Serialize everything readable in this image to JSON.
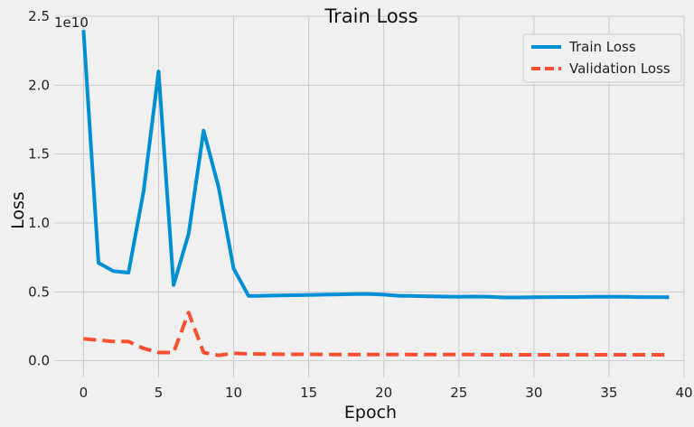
{
  "chart_data": {
    "type": "line",
    "title": "Train Loss",
    "xlabel": "Epoch",
    "ylabel": "Loss",
    "y_offset_text": "1e10",
    "xlim": [
      -1.95,
      40.0
    ],
    "ylim": [
      -0.12,
      2.5
    ],
    "x_ticks": [
      0,
      5,
      10,
      15,
      20,
      25,
      30,
      35,
      40
    ],
    "y_ticks": [
      0.0,
      0.5,
      1.0,
      1.5,
      2.0,
      2.5
    ],
    "y_tick_labels": [
      "0.0",
      "0.5",
      "1.0",
      "1.5",
      "2.0",
      "2.5"
    ],
    "grid": true,
    "legend_position": "top-right",
    "x": [
      0,
      1,
      2,
      3,
      4,
      5,
      6,
      7,
      8,
      9,
      10,
      11,
      12,
      13,
      14,
      15,
      16,
      17,
      18,
      19,
      20,
      21,
      22,
      23,
      24,
      25,
      26,
      27,
      28,
      29,
      30,
      31,
      32,
      33,
      34,
      35,
      36,
      37,
      38,
      39
    ],
    "series": [
      {
        "name": "Train Loss",
        "color": "#008fd5",
        "style": "solid",
        "values": [
          2.4,
          0.71,
          0.65,
          0.64,
          1.23,
          2.1,
          0.55,
          0.92,
          1.67,
          1.26,
          0.67,
          0.47,
          0.472,
          0.474,
          0.476,
          0.478,
          0.48,
          0.482,
          0.484,
          0.485,
          0.48,
          0.472,
          0.47,
          0.468,
          0.466,
          0.465,
          0.466,
          0.465,
          0.46,
          0.46,
          0.461,
          0.462,
          0.463,
          0.463,
          0.464,
          0.465,
          0.464,
          0.462,
          0.462,
          0.461
        ]
      },
      {
        "name": "Validation Loss",
        "color": "#fc4f30",
        "style": "dashed",
        "values": [
          0.16,
          0.15,
          0.14,
          0.14,
          0.09,
          0.06,
          0.06,
          0.35,
          0.06,
          0.04,
          0.055,
          0.05,
          0.049,
          0.048,
          0.047,
          0.047,
          0.046,
          0.046,
          0.046,
          0.046,
          0.046,
          0.045,
          0.045,
          0.045,
          0.045,
          0.045,
          0.045,
          0.044,
          0.044,
          0.044,
          0.044,
          0.044,
          0.044,
          0.044,
          0.044,
          0.044,
          0.044,
          0.044,
          0.044,
          0.044
        ]
      }
    ]
  }
}
